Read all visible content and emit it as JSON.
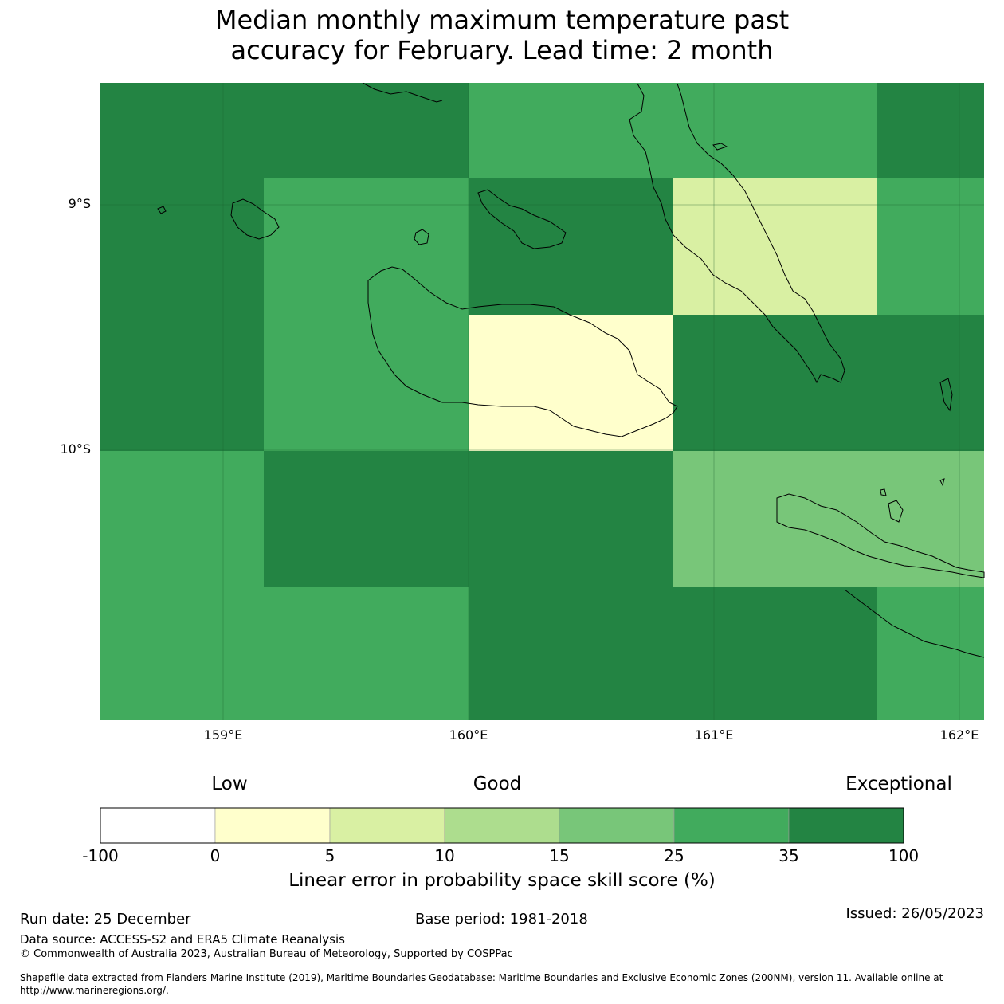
{
  "title": {
    "line1": "Median monthly maximum temperature past",
    "line2": "accuracy for February. Lead time: 2 month"
  },
  "map": {
    "lat_labels": [
      "9°S",
      "10°S"
    ],
    "lon_labels": [
      "159°E",
      "160°E",
      "161°E",
      "162°E"
    ],
    "colors": {
      "c0_5": "#ffffcc",
      "c5_10": "#d9f0a3",
      "c15_25": "#78c679",
      "c25_35": "#41ab5d",
      "c35_100": "#238443",
      "grid": "#1b5e2e",
      "coast": "#000000"
    }
  },
  "legend": {
    "categories": {
      "low": "Low",
      "good": "Good",
      "exceptional": "Exceptional"
    },
    "ticks": [
      "-100",
      "0",
      "5",
      "10",
      "15",
      "25",
      "35",
      "100"
    ],
    "colors": [
      "#ffffff",
      "#ffffcc",
      "#d9f0a3",
      "#addd8e",
      "#78c679",
      "#41ab5d",
      "#238443"
    ],
    "label": "Linear error in probability space skill score (%)"
  },
  "footer": {
    "run_date": "Run date: 25 December",
    "base_period": "Base period: 1981-2018",
    "issued": "Issued: 26/05/2023",
    "data_source": "Data source: ACCESS-S2 and ERA5 Climate Reanalysis",
    "copyright": "© Commonwealth of Australia 2023, Australian Bureau of Meteorology, Supported by COSPPac",
    "shapefile_line1": "Shapefile data extracted from Flanders Marine Institute (2019), Maritime Boundaries Geodatabase: Maritime Boundaries and Exclusive Economic Zones (200NM), version 11. Available online at",
    "shapefile_line2": "http://www.marineregions.org/."
  }
}
